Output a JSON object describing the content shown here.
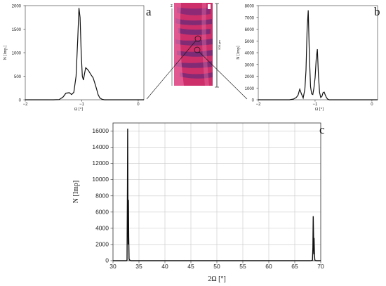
{
  "chart_data": [
    {
      "panel_label": "a",
      "type": "line",
      "xlabel": "Ω [°]",
      "ylabel": "N [Imp.]",
      "xlim": [
        -2,
        0.1
      ],
      "ylim": [
        0,
        2000
      ],
      "xticks": [
        -2,
        -1,
        0
      ],
      "xtick_labels": [
        "−2",
        "−1",
        "0"
      ],
      "yticks": [
        0,
        500,
        1000,
        1500,
        2000
      ],
      "ytick_labels": [
        "0",
        "500",
        "1000",
        "1500",
        "2000"
      ],
      "grid": false,
      "series": [
        {
          "x": [
            -2.0,
            -1.5,
            -1.4,
            -1.33,
            -1.28,
            -1.22,
            -1.18,
            -1.14,
            -1.1,
            -1.07,
            -1.05,
            -1.03,
            -1.01,
            -0.99,
            -0.97,
            -0.95,
            -0.93,
            -0.91,
            -0.88,
            -0.85,
            -0.83,
            -0.8,
            -0.77,
            -0.74,
            -0.71,
            -0.68,
            -0.64,
            -0.6,
            -0.5,
            -0.2,
            0.1
          ],
          "y": [
            0,
            0,
            5,
            60,
            140,
            150,
            110,
            160,
            500,
            1300,
            1950,
            1750,
            1000,
            500,
            420,
            560,
            680,
            660,
            620,
            560,
            520,
            470,
            360,
            240,
            110,
            40,
            10,
            0,
            0,
            0,
            0
          ]
        }
      ]
    },
    {
      "panel_label": "b",
      "type": "line",
      "xlabel": "Ω [°]",
      "ylabel": "N [Imp]",
      "xlim": [
        -2,
        0.1
      ],
      "ylim": [
        0,
        8000
      ],
      "xticks": [
        -2,
        -1,
        0
      ],
      "xtick_labels": [
        "−2",
        "−1",
        "0"
      ],
      "yticks": [
        0,
        1000,
        2000,
        3000,
        4000,
        5000,
        6000,
        7000,
        8000
      ],
      "ytick_labels": [
        "0",
        "1000",
        "2000",
        "3000",
        "4000",
        "5000",
        "6000",
        "7000",
        "8000"
      ],
      "grid": false,
      "series": [
        {
          "x": [
            -2.0,
            -1.45,
            -1.38,
            -1.33,
            -1.3,
            -1.27,
            -1.24,
            -1.21,
            -1.18,
            -1.16,
            -1.14,
            -1.12,
            -1.1,
            -1.08,
            -1.06,
            -1.04,
            -1.02,
            -1.0,
            -0.98,
            -0.96,
            -0.94,
            -0.92,
            -0.9,
            -0.88,
            -0.86,
            -0.84,
            -0.82,
            -0.8,
            -0.78,
            -0.75,
            -0.6,
            -0.2,
            0.1
          ],
          "y": [
            0,
            0,
            60,
            200,
            400,
            900,
            500,
            150,
            900,
            2500,
            6000,
            7600,
            3600,
            1100,
            500,
            450,
            1000,
            1900,
            3500,
            4300,
            2000,
            600,
            200,
            300,
            600,
            650,
            400,
            200,
            60,
            0,
            0,
            0,
            0
          ]
        }
      ]
    },
    {
      "panel_label": "c",
      "type": "line",
      "xlabel": "2Ω [°]",
      "ylabel": "N [Imp]",
      "xlim": [
        30,
        70
      ],
      "ylim": [
        0,
        17000
      ],
      "xticks": [
        30,
        35,
        40,
        45,
        50,
        55,
        60,
        65,
        70
      ],
      "xtick_labels": [
        "30",
        "35",
        "40",
        "45",
        "50",
        "55",
        "60",
        "65",
        "70"
      ],
      "yticks": [
        0,
        2000,
        4000,
        6000,
        8000,
        10000,
        12000,
        14000,
        16000
      ],
      "ytick_labels": [
        "0",
        "2000",
        "4000",
        "6000",
        "8000",
        "10000",
        "12000",
        "14000",
        "16000"
      ],
      "grid": true,
      "series": [
        {
          "x": [
            30.0,
            32.6,
            32.7,
            32.78,
            32.82,
            32.88,
            32.93,
            32.97,
            33.03,
            33.1,
            33.25,
            33.5,
            68.0,
            68.4,
            68.48,
            68.55,
            68.6,
            68.67,
            68.72,
            68.78,
            68.85,
            68.95,
            69.2,
            70.0
          ],
          "y": [
            0,
            0,
            100,
            9000,
            16300,
            6000,
            2000,
            7500,
            3000,
            200,
            50,
            0,
            0,
            50,
            1500,
            5500,
            4000,
            800,
            2800,
            900,
            150,
            30,
            0,
            0
          ]
        }
      ]
    }
  ],
  "micrograph": {
    "scale_text": "500 µm",
    "axis_letter": "z"
  },
  "colors": {
    "line": "#111111",
    "axis": "#333333",
    "grid": "#c8c8c8",
    "micrograph_base": "#cc2f6a",
    "micrograph_stripe": "#6e2a78",
    "micrograph_light": "#f27ab0"
  }
}
